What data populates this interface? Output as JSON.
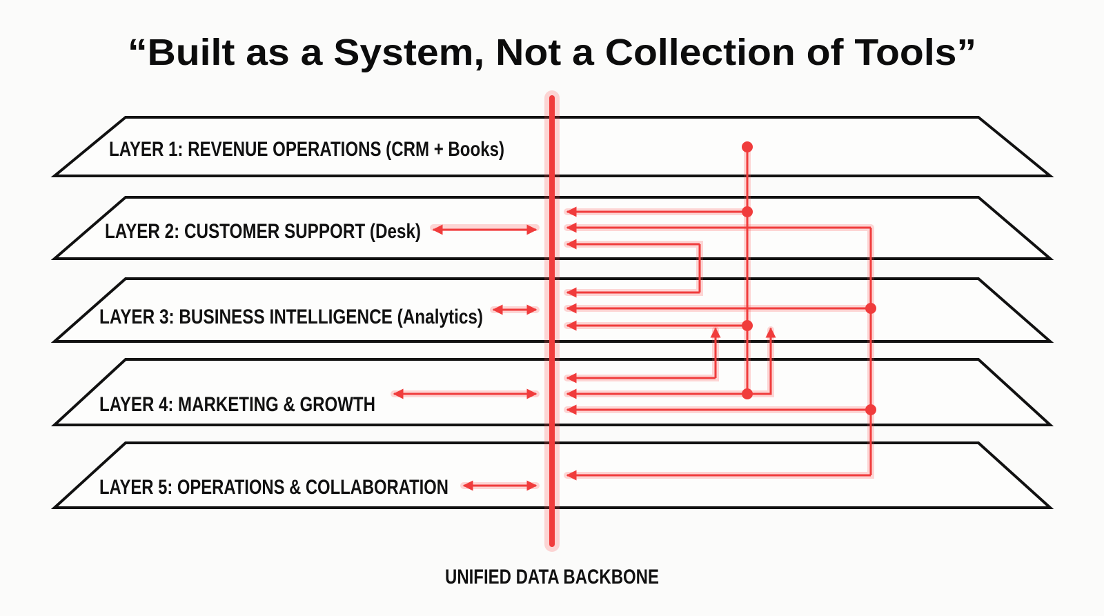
{
  "title": "“Built as a System, Not a Collection of Tools”",
  "layers": [
    {
      "label": "LAYER 1: REVENUE OPERATIONS (CRM + Books)"
    },
    {
      "label": "LAYER 2: CUSTOMER SUPPORT (Desk)"
    },
    {
      "label": "LAYER 3: BUSINESS INTELLIGENCE (Analytics)"
    },
    {
      "label": "LAYER 4: MARKETING & GROWTH"
    },
    {
      "label": "LAYER 5: OPERATIONS & COLLABORATION"
    }
  ],
  "backbone_label": "UNIFIED DATA BACKBONE",
  "colors": {
    "accent": "#f03c3c",
    "outline": "#111111",
    "background": "#fbfbfa"
  }
}
